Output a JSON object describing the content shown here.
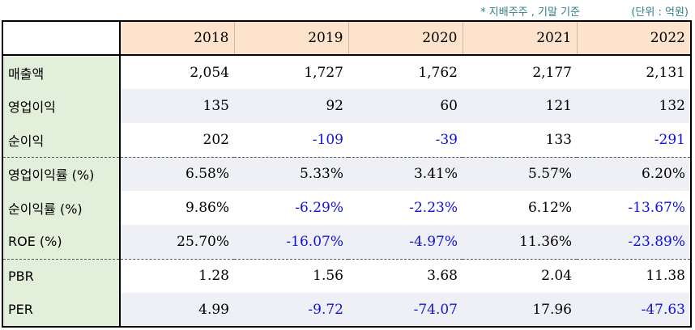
{
  "notes": {
    "basis": "* 지배주주 , 기말 기준",
    "unit": "(단위 : 억원)"
  },
  "columns": [
    "2018",
    "2019",
    "2020",
    "2021",
    "2022"
  ],
  "rows": [
    {
      "label": "매출액",
      "values": [
        "2,054",
        "1,727",
        "1,762",
        "2,177",
        "2,131"
      ]
    },
    {
      "label": "영업이익",
      "values": [
        "135",
        "92",
        "60",
        "121",
        "132"
      ]
    },
    {
      "label": "순이익",
      "values": [
        "202",
        "-109",
        "-39",
        "133",
        "-291"
      ]
    },
    {
      "label": "영업이익률 (%)",
      "values": [
        "6.58%",
        "5.33%",
        "3.41%",
        "5.57%",
        "6.20%"
      ]
    },
    {
      "label": "순이익률 (%)",
      "values": [
        "9.86%",
        "-6.29%",
        "-2.23%",
        "6.12%",
        "-13.67%"
      ]
    },
    {
      "label": "ROE (%)",
      "values": [
        "25.70%",
        "-16.07%",
        "-4.97%",
        "11.36%",
        "-23.89%"
      ]
    },
    {
      "label": "PBR",
      "values": [
        "1.28",
        "1.56",
        "3.68",
        "2.04",
        "11.38"
      ]
    },
    {
      "label": "PER",
      "values": [
        "4.99",
        "-9.72",
        "-74.07",
        "17.96",
        "-47.63"
      ]
    }
  ],
  "colors": {
    "header_bg": "#fde2cc",
    "label_bg": "#e2efdb",
    "shade_bg": "#eef0f5",
    "negative": "#1010e0",
    "note": "#2f7f87"
  }
}
